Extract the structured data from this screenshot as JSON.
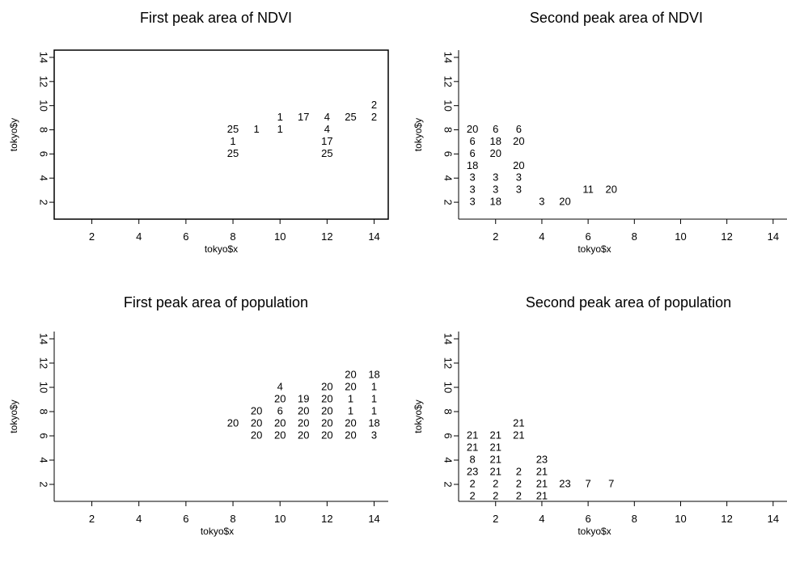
{
  "chart_data": [
    {
      "type": "scatter",
      "title": "First peak area of NDVI",
      "xlabel": "tokyo$x",
      "ylabel": "tokyo$y",
      "xlim": [
        0.4,
        14.6
      ],
      "ylim": [
        0.6,
        14.6
      ],
      "xticks": [
        2,
        4,
        6,
        8,
        10,
        12,
        14
      ],
      "yticks": [
        2,
        4,
        6,
        8,
        10,
        12,
        14
      ],
      "box": true,
      "points": [
        {
          "x": 14,
          "y": 10,
          "label": "2"
        },
        {
          "x": 10,
          "y": 9,
          "label": "1"
        },
        {
          "x": 11,
          "y": 9,
          "label": "17"
        },
        {
          "x": 12,
          "y": 9,
          "label": "4"
        },
        {
          "x": 13,
          "y": 9,
          "label": "25"
        },
        {
          "x": 14,
          "y": 9,
          "label": "2"
        },
        {
          "x": 8,
          "y": 8,
          "label": "25"
        },
        {
          "x": 9,
          "y": 8,
          "label": "1"
        },
        {
          "x": 10,
          "y": 8,
          "label": "1"
        },
        {
          "x": 12,
          "y": 8,
          "label": "4"
        },
        {
          "x": 8,
          "y": 7,
          "label": "1"
        },
        {
          "x": 12,
          "y": 7,
          "label": "17"
        },
        {
          "x": 8,
          "y": 6,
          "label": "25"
        },
        {
          "x": 12,
          "y": 6,
          "label": "25"
        }
      ]
    },
    {
      "type": "scatter",
      "title": "Second peak area of NDVI",
      "xlabel": "tokyo$x",
      "ylabel": "tokyo$y",
      "xlim": [
        0.4,
        14.6
      ],
      "ylim": [
        0.6,
        14.6
      ],
      "xticks": [
        2,
        4,
        6,
        8,
        10,
        12,
        14
      ],
      "yticks": [
        2,
        4,
        6,
        8,
        10,
        12,
        14
      ],
      "box": false,
      "points": [
        {
          "x": 1,
          "y": 8,
          "label": "20"
        },
        {
          "x": 2,
          "y": 8,
          "label": "6"
        },
        {
          "x": 3,
          "y": 8,
          "label": "6"
        },
        {
          "x": 1,
          "y": 7,
          "label": "6"
        },
        {
          "x": 2,
          "y": 7,
          "label": "18"
        },
        {
          "x": 3,
          "y": 7,
          "label": "20"
        },
        {
          "x": 1,
          "y": 6,
          "label": "6"
        },
        {
          "x": 2,
          "y": 6,
          "label": "20"
        },
        {
          "x": 1,
          "y": 5,
          "label": "18"
        },
        {
          "x": 3,
          "y": 5,
          "label": "20"
        },
        {
          "x": 1,
          "y": 4,
          "label": "3"
        },
        {
          "x": 2,
          "y": 4,
          "label": "3"
        },
        {
          "x": 3,
          "y": 4,
          "label": "3"
        },
        {
          "x": 1,
          "y": 3,
          "label": "3"
        },
        {
          "x": 2,
          "y": 3,
          "label": "3"
        },
        {
          "x": 3,
          "y": 3,
          "label": "3"
        },
        {
          "x": 6,
          "y": 3,
          "label": "11"
        },
        {
          "x": 7,
          "y": 3,
          "label": "20"
        },
        {
          "x": 1,
          "y": 2,
          "label": "3"
        },
        {
          "x": 2,
          "y": 2,
          "label": "18"
        },
        {
          "x": 4,
          "y": 2,
          "label": "3"
        },
        {
          "x": 5,
          "y": 2,
          "label": "20"
        }
      ]
    },
    {
      "type": "scatter",
      "title": "First peak area of population",
      "xlabel": "tokyo$x",
      "ylabel": "tokyo$y",
      "xlim": [
        0.4,
        14.6
      ],
      "ylim": [
        0.6,
        14.6
      ],
      "xticks": [
        2,
        4,
        6,
        8,
        10,
        12,
        14
      ],
      "yticks": [
        2,
        4,
        6,
        8,
        10,
        12,
        14
      ],
      "box": false,
      "points": [
        {
          "x": 13,
          "y": 11,
          "label": "20"
        },
        {
          "x": 14,
          "y": 11,
          "label": "18"
        },
        {
          "x": 10,
          "y": 10,
          "label": "4"
        },
        {
          "x": 12,
          "y": 10,
          "label": "20"
        },
        {
          "x": 13,
          "y": 10,
          "label": "20"
        },
        {
          "x": 14,
          "y": 10,
          "label": "1"
        },
        {
          "x": 10,
          "y": 9,
          "label": "20"
        },
        {
          "x": 11,
          "y": 9,
          "label": "19"
        },
        {
          "x": 12,
          "y": 9,
          "label": "20"
        },
        {
          "x": 13,
          "y": 9,
          "label": "1"
        },
        {
          "x": 14,
          "y": 9,
          "label": "1"
        },
        {
          "x": 9,
          "y": 8,
          "label": "20"
        },
        {
          "x": 10,
          "y": 8,
          "label": "6"
        },
        {
          "x": 11,
          "y": 8,
          "label": "20"
        },
        {
          "x": 12,
          "y": 8,
          "label": "20"
        },
        {
          "x": 13,
          "y": 8,
          "label": "1"
        },
        {
          "x": 14,
          "y": 8,
          "label": "1"
        },
        {
          "x": 8,
          "y": 7,
          "label": "20"
        },
        {
          "x": 9,
          "y": 7,
          "label": "20"
        },
        {
          "x": 10,
          "y": 7,
          "label": "20"
        },
        {
          "x": 11,
          "y": 7,
          "label": "20"
        },
        {
          "x": 12,
          "y": 7,
          "label": "20"
        },
        {
          "x": 13,
          "y": 7,
          "label": "20"
        },
        {
          "x": 14,
          "y": 7,
          "label": "18"
        },
        {
          "x": 9,
          "y": 6,
          "label": "20"
        },
        {
          "x": 10,
          "y": 6,
          "label": "20"
        },
        {
          "x": 11,
          "y": 6,
          "label": "20"
        },
        {
          "x": 12,
          "y": 6,
          "label": "20"
        },
        {
          "x": 13,
          "y": 6,
          "label": "20"
        },
        {
          "x": 14,
          "y": 6,
          "label": "3"
        }
      ]
    },
    {
      "type": "scatter",
      "title": "Second peak area of population",
      "xlabel": "tokyo$x",
      "ylabel": "tokyo$y",
      "xlim": [
        0.4,
        14.6
      ],
      "ylim": [
        0.6,
        14.6
      ],
      "xticks": [
        2,
        4,
        6,
        8,
        10,
        12,
        14
      ],
      "yticks": [
        2,
        4,
        6,
        8,
        10,
        12,
        14
      ],
      "box": false,
      "points": [
        {
          "x": 3,
          "y": 7,
          "label": "21"
        },
        {
          "x": 1,
          "y": 6,
          "label": "21"
        },
        {
          "x": 2,
          "y": 6,
          "label": "21"
        },
        {
          "x": 3,
          "y": 6,
          "label": "21"
        },
        {
          "x": 1,
          "y": 5,
          "label": "21"
        },
        {
          "x": 2,
          "y": 5,
          "label": "21"
        },
        {
          "x": 1,
          "y": 4,
          "label": "8"
        },
        {
          "x": 2,
          "y": 4,
          "label": "21"
        },
        {
          "x": 4,
          "y": 4,
          "label": "23"
        },
        {
          "x": 1,
          "y": 3,
          "label": "23"
        },
        {
          "x": 2,
          "y": 3,
          "label": "21"
        },
        {
          "x": 3,
          "y": 3,
          "label": "2"
        },
        {
          "x": 4,
          "y": 3,
          "label": "21"
        },
        {
          "x": 1,
          "y": 2,
          "label": "2"
        },
        {
          "x": 2,
          "y": 2,
          "label": "2"
        },
        {
          "x": 3,
          "y": 2,
          "label": "2"
        },
        {
          "x": 4,
          "y": 2,
          "label": "21"
        },
        {
          "x": 5,
          "y": 2,
          "label": "23"
        },
        {
          "x": 6,
          "y": 2,
          "label": "7"
        },
        {
          "x": 7,
          "y": 2,
          "label": "7"
        },
        {
          "x": 1,
          "y": 1,
          "label": "2"
        },
        {
          "x": 2,
          "y": 1,
          "label": "2"
        },
        {
          "x": 3,
          "y": 1,
          "label": "2"
        },
        {
          "x": 4,
          "y": 1,
          "label": "21"
        }
      ]
    }
  ]
}
